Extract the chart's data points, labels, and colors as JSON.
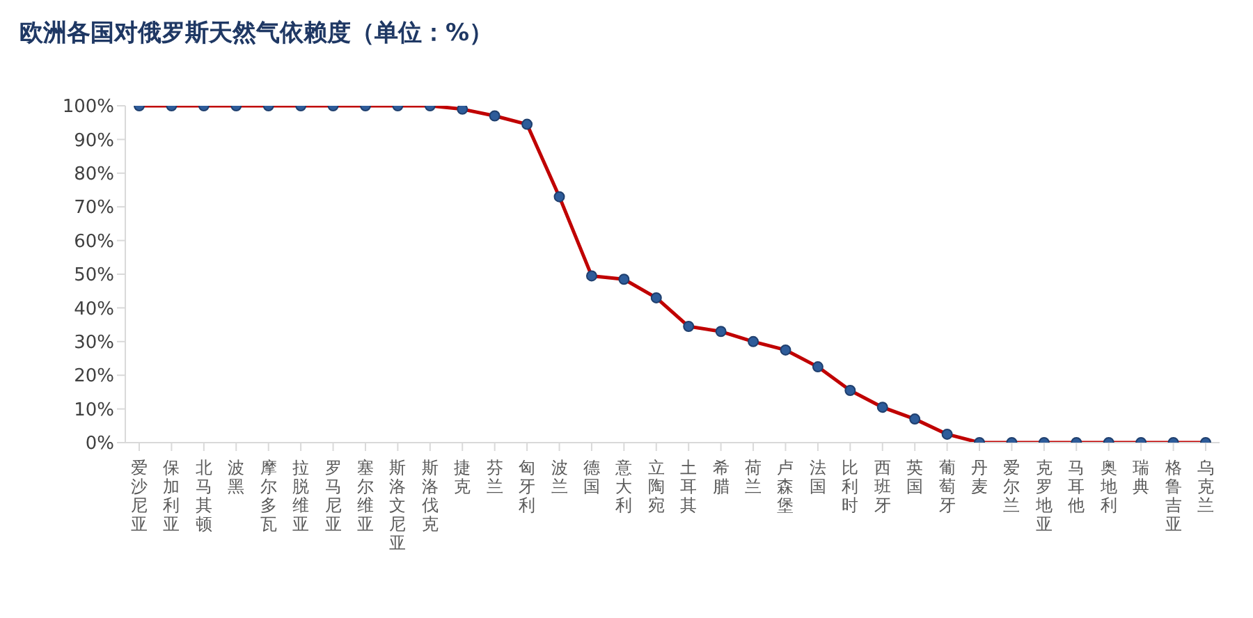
{
  "chart_data": {
    "type": "line",
    "title": "欧洲各国对俄罗斯天然气依赖度（单位：%）",
    "categories": [
      "爱沙尼亚",
      "保加利亚",
      "北马其顿",
      "波黑",
      "摩尔多瓦",
      "拉脱维亚",
      "罗马尼亚",
      "塞尔维亚",
      "斯洛文尼亚",
      "斯洛伐克",
      "捷克",
      "芬兰",
      "匈牙利",
      "波兰",
      "德国",
      "意大利",
      "立陶宛",
      "土耳其",
      "希腊",
      "荷兰",
      "卢森堡",
      "法国",
      "比利时",
      "西班牙",
      "英国",
      "葡萄牙",
      "丹麦",
      "爱尔兰",
      "克罗地亚",
      "马耳他",
      "奥地利",
      "瑞典",
      "格鲁吉亚",
      "乌克兰"
    ],
    "series": [
      {
        "color": "#c00000",
        "values": [
          100,
          100,
          100,
          100,
          100,
          100,
          100,
          100,
          100,
          100,
          99,
          97,
          94.5,
          73,
          49.5,
          48.5,
          43,
          34.5,
          33,
          30,
          27.5,
          22.5,
          15.5,
          10.5,
          7,
          2.5,
          0,
          0,
          0,
          0,
          0,
          0,
          0,
          0
        ]
      }
    ],
    "ylim": [
      0,
      100
    ],
    "yticks": [
      {
        "value": 0,
        "label": "0%"
      },
      {
        "value": 10,
        "label": "10%"
      },
      {
        "value": 20,
        "label": "20%"
      },
      {
        "value": 30,
        "label": "30%"
      },
      {
        "value": 40,
        "label": "40%"
      },
      {
        "value": 50,
        "label": "50%"
      },
      {
        "value": 60,
        "label": "60%"
      },
      {
        "value": 70,
        "label": "70%"
      },
      {
        "value": 80,
        "label": "80%"
      },
      {
        "value": 90,
        "label": "90%"
      },
      {
        "value": 100,
        "label": "100%"
      }
    ],
    "grid": false,
    "legend": false,
    "marker": "circle",
    "line_style": "solid"
  }
}
